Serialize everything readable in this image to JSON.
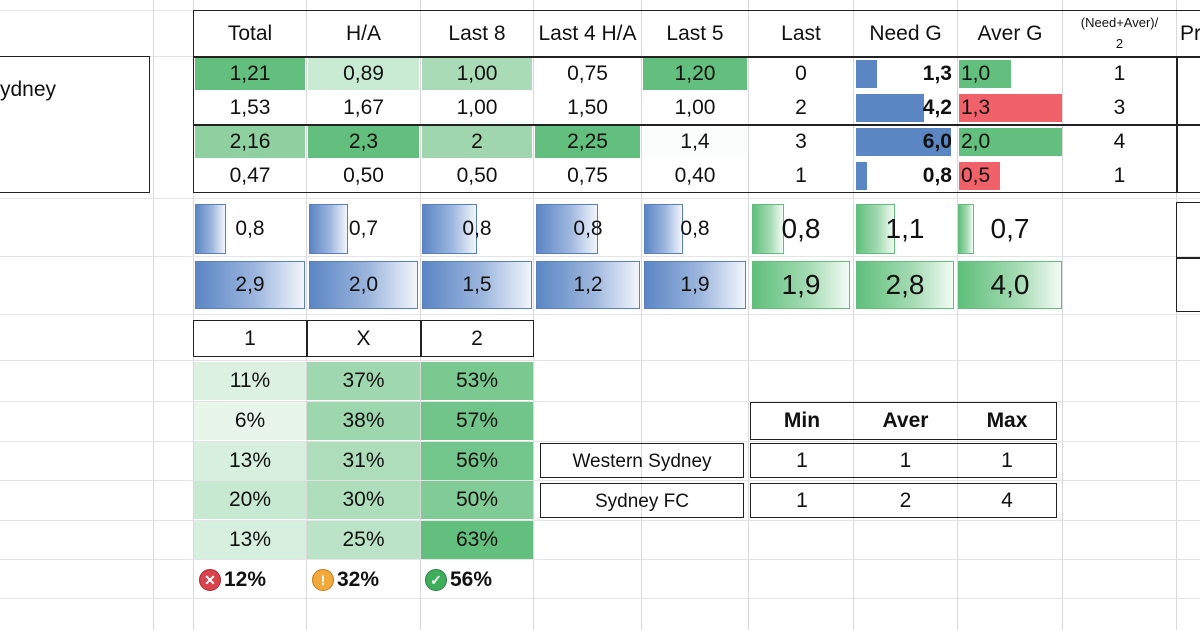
{
  "team_cell": "ydney",
  "headers": [
    "Total",
    "H/A",
    "Last 8",
    "Last 4 H/A",
    "Last 5",
    "Last",
    "Need G",
    "Aver G",
    "(Need+Aver)/",
    "2",
    "Pr"
  ],
  "rows": [
    {
      "total": "1,21",
      "ha": "0,89",
      "last8": "1,00",
      "last4ha": "0,75",
      "last5": "1,20",
      "last": "0",
      "need": "1,3",
      "aver": "1,0",
      "na2": "1",
      "need_frac": 0.22,
      "aver_frac": 0.5,
      "aver_color": "green"
    },
    {
      "total": "1,53",
      "ha": "1,67",
      "last8": "1,00",
      "last4ha": "1,50",
      "last5": "1,00",
      "last": "2",
      "need": "4,2",
      "aver": "1,3",
      "na2": "3",
      "need_frac": 0.72,
      "aver_frac": 1.0,
      "aver_color": "red"
    },
    {
      "total": "2,16",
      "ha": "2,3",
      "last8": "2",
      "last4ha": "2,25",
      "last5": "1,4",
      "last": "3",
      "need": "6,0",
      "aver": "2,0",
      "na2": "4",
      "need_frac": 1.0,
      "aver_frac": 1.0,
      "aver_color": "green"
    },
    {
      "total": "0,47",
      "ha": "0,50",
      "last8": "0,50",
      "last4ha": "0,75",
      "last5": "0,40",
      "last": "1",
      "need": "0,8",
      "aver": "0,5",
      "na2": "1",
      "need_frac": 0.12,
      "aver_frac": 0.4,
      "aver_color": "red"
    }
  ],
  "bars_row1": [
    {
      "value": "0,8",
      "frac": 0.28,
      "color": "blue"
    },
    {
      "value": "0,7",
      "frac": 0.36,
      "color": "blue"
    },
    {
      "value": "0,8",
      "frac": 0.5,
      "color": "blue"
    },
    {
      "value": "0,8",
      "frac": 0.6,
      "color": "blue"
    },
    {
      "value": "0,8",
      "frac": 0.38,
      "color": "blue"
    },
    {
      "value": "0,8",
      "frac": 0.33,
      "color": "green"
    },
    {
      "value": "1,1",
      "frac": 0.4,
      "color": "green"
    },
    {
      "value": "0,7",
      "frac": 0.15,
      "color": "green"
    }
  ],
  "bars_row2": [
    {
      "value": "2,9",
      "frac": 1.0,
      "color": "blue"
    },
    {
      "value": "2,0",
      "frac": 1.0,
      "color": "blue"
    },
    {
      "value": "1,5",
      "frac": 1.0,
      "color": "blue"
    },
    {
      "value": "1,2",
      "frac": 1.0,
      "color": "blue"
    },
    {
      "value": "1,9",
      "frac": 1.0,
      "color": "blue"
    },
    {
      "value": "1,9",
      "frac": 1.0,
      "color": "green"
    },
    {
      "value": "2,8",
      "frac": 1.0,
      "color": "green"
    },
    {
      "value": "4,0",
      "frac": 1.0,
      "color": "green"
    }
  ],
  "outcome_header": [
    "1",
    "X",
    "2"
  ],
  "outcome_rows": [
    [
      "11%",
      "37%",
      "53%"
    ],
    [
      "6%",
      "38%",
      "57%"
    ],
    [
      "13%",
      "31%",
      "56%"
    ],
    [
      "20%",
      "30%",
      "50%"
    ],
    [
      "13%",
      "25%",
      "63%"
    ]
  ],
  "outcome_summary": [
    "12%",
    "32%",
    "56%"
  ],
  "minmax": {
    "headers": [
      "Min",
      "Aver",
      "Max"
    ],
    "teams": [
      {
        "name": "Western Sydney",
        "min": "1",
        "aver": "1",
        "max": "1"
      },
      {
        "name": "Sydney FC",
        "min": "1",
        "aver": "2",
        "max": "4"
      }
    ]
  },
  "colors": {
    "blue": "#5b86c4",
    "green": "#63bf7e",
    "red": "#f0616a"
  },
  "icons": [
    "cross-icon",
    "warning-icon",
    "check-icon"
  ]
}
